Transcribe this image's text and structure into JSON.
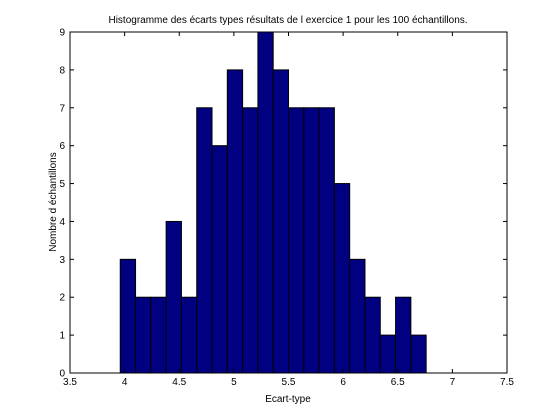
{
  "chart_data": {
    "type": "bar",
    "title": "Histogramme des écarts types résultats de l exercice 1 pour les 100 échantillons.",
    "xlabel": "Ecart-type",
    "ylabel": "Nombre d échantillons",
    "xlim": [
      3.5,
      7.5
    ],
    "ylim": [
      0,
      9
    ],
    "xticks": [
      "3.5",
      "4",
      "4.5",
      "5",
      "5.5",
      "6",
      "6.5",
      "7",
      "7.5"
    ],
    "yticks": [
      "0",
      "1",
      "2",
      "3",
      "4",
      "5",
      "6",
      "7",
      "8",
      "9"
    ],
    "bin_start": 3.96,
    "bin_width": 0.14,
    "values": [
      3,
      2,
      2,
      4,
      2,
      7,
      6,
      8,
      7,
      9,
      8,
      7,
      7,
      7,
      5,
      3,
      2,
      1,
      2,
      1
    ],
    "bar_color": "#000080",
    "grid": false,
    "legend": "none"
  }
}
